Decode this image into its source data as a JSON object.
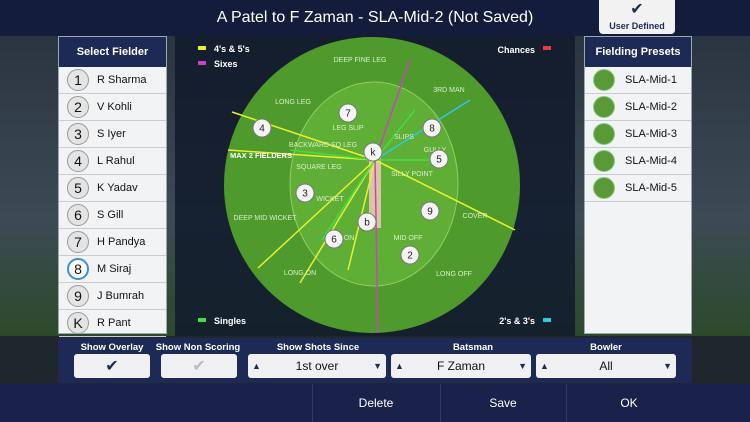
{
  "header": {
    "title": "A Patel to F Zaman - SLA-Mid-2 (Not Saved)",
    "user_defined": "User Defined"
  },
  "select_fielder": {
    "title": "Select Fielder",
    "fielders": [
      {
        "number": "1",
        "name": "R Sharma"
      },
      {
        "number": "2",
        "name": "V Kohli"
      },
      {
        "number": "3",
        "name": "S Iyer"
      },
      {
        "number": "4",
        "name": "L Rahul"
      },
      {
        "number": "5",
        "name": "K Yadav"
      },
      {
        "number": "6",
        "name": "S Gill"
      },
      {
        "number": "7",
        "name": "H Pandya"
      },
      {
        "number": "8",
        "name": "M Siraj"
      },
      {
        "number": "9",
        "name": "J Bumrah"
      },
      {
        "number": "K",
        "name": "R Pant"
      }
    ]
  },
  "presets": {
    "title": "Fielding Presets",
    "items": [
      "SLA-Mid-1",
      "SLA-Mid-2",
      "SLA-Mid-3",
      "SLA-Mid-4",
      "SLA-Mid-5"
    ]
  },
  "field": {
    "legend": {
      "fours": "4's & 5's",
      "sixes": "Sixes",
      "chances": "Chances",
      "singles": "Singles",
      "twos": "2's & 3's"
    },
    "max_fielders": "MAX 2 FIELDERS",
    "positions": [
      "DEEP FINE LEG",
      "LONG LEG",
      "LEG SLIP",
      "3RD MAN",
      "SLIPS",
      "GULLY",
      "BACKWARD SQ LEG",
      "SQUARE LEG",
      "SILLY POINT",
      "WICKET",
      "DEEP MID WICKET",
      "ON",
      "MID OFF",
      "COVER",
      "LONG ON",
      "LONG OFF"
    ],
    "markers": [
      "4",
      "7",
      "8",
      "5",
      "k",
      "3",
      "9",
      "b",
      "6",
      "2"
    ]
  },
  "controls": {
    "show_overlay": "Show Overlay",
    "show_non_scoring": "Show Non Scoring",
    "show_shots_since": {
      "label": "Show Shots Since",
      "value": "1st over"
    },
    "batsman": {
      "label": "Batsman",
      "value": "F Zaman"
    },
    "bowler": {
      "label": "Bowler",
      "value": "All"
    }
  },
  "buttons": [
    "Delete",
    "Save",
    "OK"
  ]
}
